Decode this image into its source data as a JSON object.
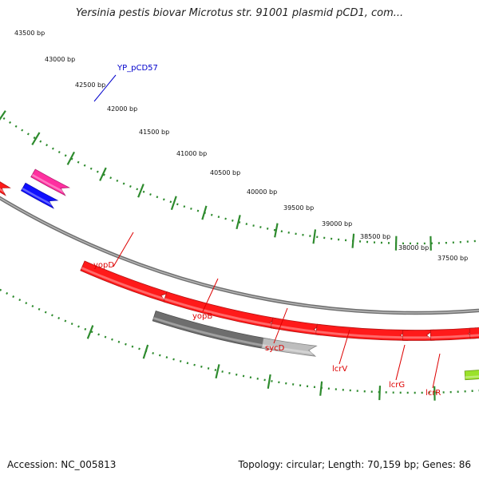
{
  "title": "Yersinia pestis biovar Microtus str. 91001 plasmid pCD1, com...",
  "footer": {
    "accession": "Accession: NC_005813",
    "summary": "Topology: circular; Length: 70,159 bp; Genes: 86"
  },
  "colors": {
    "backbone": "#8a8a8a",
    "scale_dots": "#2e8b2e",
    "gene_red": "#ff1a1a",
    "gene_gray": "#6e6e6e",
    "gene_lightgray": "#bdbdbd",
    "gene_pink": "#ff2fa0",
    "gene_blue": "#1010ff",
    "gene_green": "#9be22a",
    "label_red": "#dd0000",
    "label_blue": "#0000cc"
  },
  "scale_labels": [
    "43500 bp",
    "43000 bp",
    "42500 bp",
    "42000 bp",
    "41500 bp",
    "41000 bp",
    "40500 bp",
    "40000 bp",
    "39500 bp",
    "39000 bp",
    "38500 bp",
    "38000 bp",
    "37500 bp"
  ],
  "gene_labels": [
    {
      "id": "YP_pCD57",
      "text": "YP_pCD57",
      "color": "blue"
    },
    {
      "id": "yopD",
      "text": "yopD",
      "color": "red"
    },
    {
      "id": "yopB",
      "text": "yopB",
      "color": "red"
    },
    {
      "id": "sycD",
      "text": "sycD",
      "color": "red"
    },
    {
      "id": "lcrV",
      "text": "lcrV",
      "color": "red"
    },
    {
      "id": "lcrG",
      "text": "lcrG",
      "color": "red"
    },
    {
      "id": "lcrR",
      "text": "lcrR",
      "color": "red"
    }
  ]
}
